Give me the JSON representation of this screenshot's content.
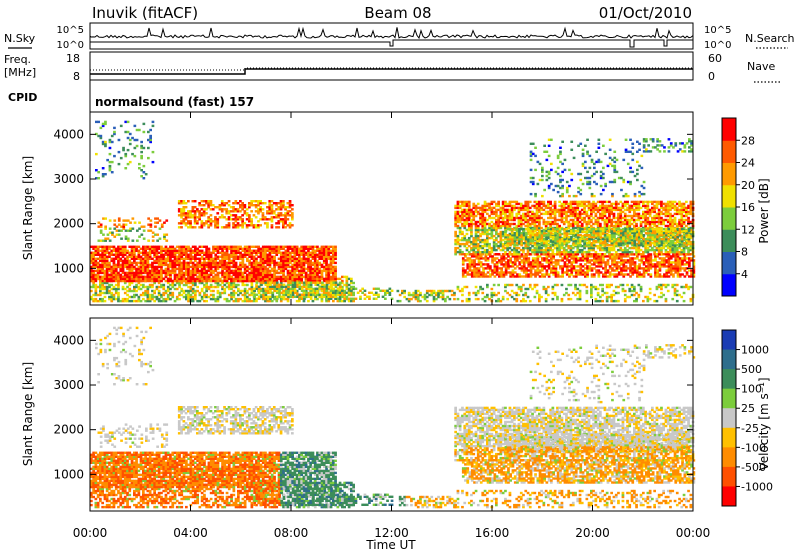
{
  "header": {
    "station": "Inuvik (fitACF)",
    "beam": "Beam 08",
    "date": "01/Oct/2010"
  },
  "chart_data": [
    {
      "type": "line",
      "panel": "noise",
      "left_label": "N.Sky",
      "right_label": "N.Search",
      "left_ticks": [
        "10^5",
        "10^0"
      ],
      "right_ticks": [
        "10^5",
        "10^0"
      ],
      "scale": "log"
    },
    {
      "type": "line",
      "panel": "frequency",
      "left_label_line1": "Freq.",
      "left_label_line2": "[MHz]",
      "right_label": "Nave",
      "left_ticks": [
        "18",
        "8"
      ],
      "right_ticks": [
        "60",
        "0"
      ],
      "ylim": [
        8,
        18
      ],
      "y2lim": [
        0,
        60
      ]
    },
    {
      "type": "table",
      "panel": "cpid",
      "label": "CPID",
      "text": "normalsound (fast) 157"
    },
    {
      "type": "heatmap",
      "panel": "power",
      "ylabel": "Slant Range [km]",
      "yticks": [
        "1000",
        "2000",
        "3000",
        "4000"
      ],
      "ylim": [
        180,
        4500
      ],
      "colorbar_label": "Power [dB]",
      "colorbar_ticks": [
        "4",
        "8",
        "12",
        "16",
        "20",
        "24",
        "28"
      ],
      "colors": [
        "#0000ff",
        "#2a5fb8",
        "#3c8d5a",
        "#7ccd3c",
        "#f0e000",
        "#ff9a00",
        "#ff5a00",
        "#ff0000"
      ]
    },
    {
      "type": "heatmap",
      "panel": "velocity",
      "ylabel": "Slant Range [km]",
      "yticks": [
        "1000",
        "2000",
        "3000",
        "4000"
      ],
      "ylim": [
        180,
        4500
      ],
      "colorbar_label": "Velocity [m s⁻¹]",
      "colorbar_ticks": [
        "1000",
        "500",
        "100",
        "25",
        "-25",
        "-100",
        "-500",
        "-1000"
      ],
      "colors": [
        "#1a3cb4",
        "#2e6e8c",
        "#3c8d5a",
        "#7ccd3c",
        "#c8c8c8",
        "#ffc000",
        "#ff8c00",
        "#ff5000",
        "#ff0000"
      ]
    }
  ],
  "time_axis": {
    "label": "Time UT",
    "ticks": [
      "00:00",
      "04:00",
      "08:00",
      "12:00",
      "16:00",
      "20:00",
      "00:00"
    ]
  }
}
